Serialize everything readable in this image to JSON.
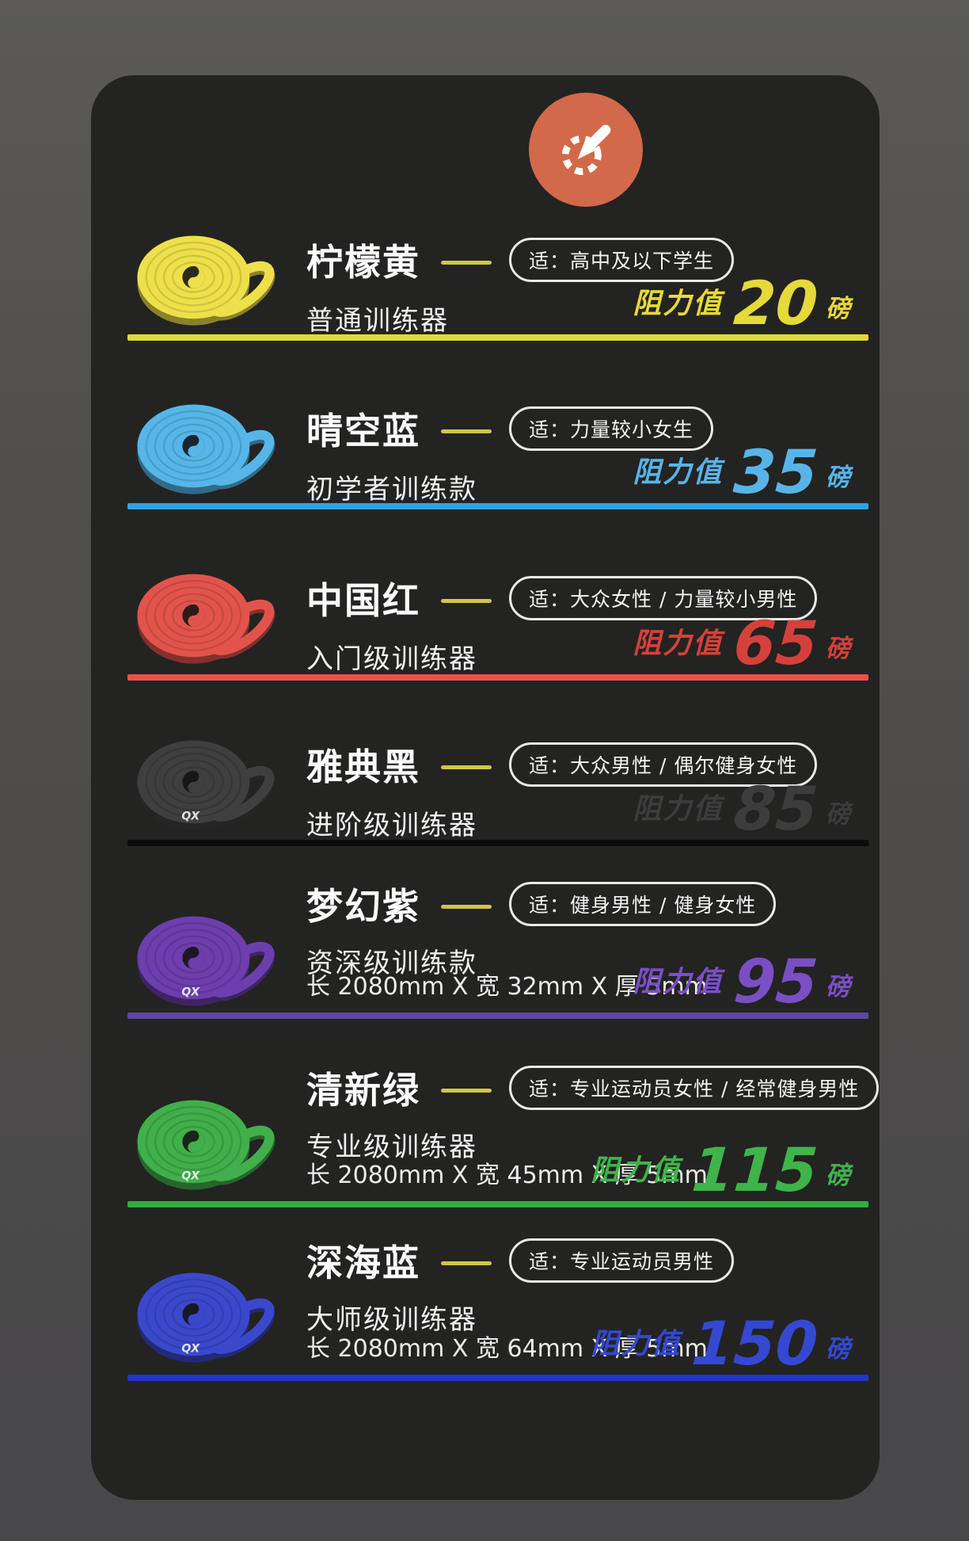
{
  "page": {
    "background": "#4c4b47",
    "card_background": "#232322"
  },
  "badge": {
    "icon": "eyedropper-badge",
    "color": "#d2694b"
  },
  "labels": {
    "resistance": "阻力值",
    "unit": "磅"
  },
  "rows": [
    {
      "name": "柠檬黄",
      "level": "普通训练器",
      "audience": "适：高中及以下学生",
      "dimensions": "",
      "resistance_lbs": "20",
      "logo": "",
      "band_color": "#eee04a",
      "value_color": "#e6d93a",
      "divider_color": "#e3d935"
    },
    {
      "name": "晴空蓝",
      "level": "初学者训练款",
      "audience": "适：力量较小女生",
      "dimensions": "",
      "resistance_lbs": "35",
      "logo": "",
      "band_color": "#56b6e8",
      "value_color": "#58b4e8",
      "divider_color": "#2aa3e6"
    },
    {
      "name": "中国红",
      "level": "入门级训练器",
      "audience": "适：大众女性 / 力量较小男性",
      "dimensions": "",
      "resistance_lbs": "65",
      "logo": "",
      "band_color": "#e2544b",
      "value_color": "#d4413a",
      "divider_color": "#e85248"
    },
    {
      "name": "雅典黑",
      "level": "进阶级训练器",
      "audience": "适：大众男性 / 偶尔健身女性",
      "dimensions": "",
      "resistance_lbs": "85",
      "logo": "QX",
      "band_color": "#403f3f",
      "value_color": "#3c3c3c",
      "divider_color": "#0b0b0b"
    },
    {
      "name": "梦幻紫",
      "level": "资深级训练款",
      "audience": "适：健身男性 / 健身女性",
      "dimensions": "长 2080mm X 宽 32mm X 厚 5mm",
      "resistance_lbs": "95",
      "logo": "QX",
      "band_color": "#6d3eae",
      "value_color": "#7a4fc4",
      "divider_color": "#5b48a0"
    },
    {
      "name": "清新绿",
      "level": "专业级训练器",
      "audience": "适：专业运动员女性 / 经常健身男性",
      "dimensions": "长 2080mm X 宽 45mm X 厚 5mm",
      "resistance_lbs": "115",
      "logo": "QX",
      "band_color": "#41af4a",
      "value_color": "#3eb44a",
      "divider_color": "#2fae41"
    },
    {
      "name": "深海蓝",
      "level": "大师级训练器",
      "audience": "适：专业运动员男性",
      "dimensions": "长 2080mm X 宽 64mm X 厚 5mm",
      "resistance_lbs": "150",
      "logo": "QX",
      "band_color": "#3a49cb",
      "value_color": "#3448d2",
      "divider_color": "#2335cb"
    }
  ]
}
